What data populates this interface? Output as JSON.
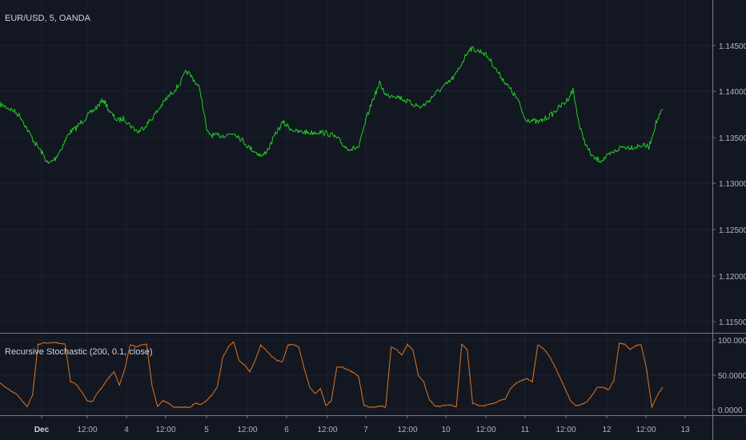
{
  "main_pane": {
    "title": "EUR/USD, 5, OANDA"
  },
  "indicator_pane": {
    "title": "Recursive Stochastic (200, 0.1, close)"
  },
  "colors": {
    "background": "#131722",
    "grid": "#1e2230",
    "separator": "#787b86",
    "price_line": "#1fd01f",
    "indicator_line": "#e0751c",
    "axis_text": "#b2b5be"
  },
  "chart_data": [
    {
      "type": "line",
      "title": "EUR/USD, 5, OANDA",
      "series": [
        {
          "values": [
            1.1375,
            1.1372,
            1.1368,
            1.1362,
            1.1348,
            1.1335,
            1.1325,
            1.1312,
            1.1318,
            1.133,
            1.1345,
            1.135,
            1.1358,
            1.1365,
            1.1372,
            1.138,
            1.1366,
            1.1358,
            1.136,
            1.1352,
            1.1346,
            1.1352,
            1.136,
            1.137,
            1.138,
            1.1388,
            1.1396,
            1.141,
            1.1402,
            1.139,
            1.1345,
            1.1342,
            1.1342,
            1.1343,
            1.1345,
            1.1338,
            1.133,
            1.1325,
            1.132,
            1.133,
            1.1345,
            1.1356,
            1.135,
            1.1346,
            1.1346,
            1.1345,
            1.1346,
            1.1345,
            1.1343,
            1.1338,
            1.133,
            1.1328,
            1.133,
            1.1358,
            1.138,
            1.1397,
            1.1384,
            1.1385,
            1.1382,
            1.1378,
            1.1375,
            1.1372,
            1.1378,
            1.1386,
            1.1392,
            1.1398,
            1.1406,
            1.142,
            1.1434,
            1.1432,
            1.143,
            1.1422,
            1.141,
            1.14,
            1.139,
            1.138,
            1.136,
            1.1358,
            1.1356,
            1.136,
            1.1365,
            1.1372,
            1.1378,
            1.139,
            1.135,
            1.133,
            1.1318,
            1.1316,
            1.132,
            1.1325,
            1.133,
            1.133,
            1.133,
            1.1332,
            1.133,
            1.1355,
            1.137
          ]
        }
      ],
      "y_ticks": [
        "1.14500",
        "1.14000",
        "1.13500",
        "1.13000",
        "1.12500",
        "1.12000",
        "1.11500"
      ],
      "ylim": [
        1.1135,
        1.1485
      ],
      "grid": true
    },
    {
      "type": "line",
      "title": "Recursive Stochastic (200, 0.1, close)",
      "series": [
        {
          "values": [
            38,
            32,
            26,
            22,
            12,
            3,
            20,
            96,
            98,
            98,
            99,
            97,
            96,
            40,
            36,
            26,
            12,
            10,
            24,
            34,
            46,
            55,
            35,
            60,
            96,
            92,
            95,
            96,
            34,
            3,
            12,
            8,
            2,
            2,
            2,
            2,
            8,
            6,
            12,
            20,
            32,
            76,
            92,
            100,
            72,
            65,
            55,
            72,
            95,
            87,
            78,
            72,
            70,
            95,
            96,
            92,
            60,
            32,
            22,
            30,
            4,
            12,
            62,
            62,
            58,
            54,
            48,
            5,
            2,
            2,
            4,
            2,
            92,
            88,
            80,
            96,
            88,
            50,
            40,
            14,
            4,
            3,
            5,
            5,
            2,
            96,
            88,
            8,
            5,
            4,
            6,
            8,
            12,
            14,
            30,
            38,
            42,
            45,
            40,
            95,
            90,
            80,
            65,
            48,
            30,
            12,
            4,
            6,
            10,
            20,
            32,
            32,
            28,
            42,
            98,
            96,
            88,
            94,
            96,
            60,
            2,
            20,
            32
          ]
        }
      ],
      "y_ticks": [
        "100.0000",
        "50.0000",
        "0.0000"
      ],
      "ylim": [
        -4,
        106
      ],
      "grid": true
    }
  ],
  "x_axis": {
    "ticks": [
      {
        "label": "Dec",
        "bold": true
      },
      {
        "label": "12:00",
        "bold": false
      },
      {
        "label": "4",
        "bold": false
      },
      {
        "label": "12:00",
        "bold": false
      },
      {
        "label": "5",
        "bold": false
      },
      {
        "label": "12:00",
        "bold": false
      },
      {
        "label": "6",
        "bold": false
      },
      {
        "label": "12:00",
        "bold": false
      },
      {
        "label": "7",
        "bold": false
      },
      {
        "label": "12:00",
        "bold": false
      },
      {
        "label": "10",
        "bold": false
      },
      {
        "label": "12:00",
        "bold": false
      },
      {
        "label": "11",
        "bold": false
      },
      {
        "label": "12:00",
        "bold": false
      },
      {
        "label": "12",
        "bold": false
      },
      {
        "label": "12:00",
        "bold": false
      },
      {
        "label": "13",
        "bold": false
      }
    ]
  }
}
